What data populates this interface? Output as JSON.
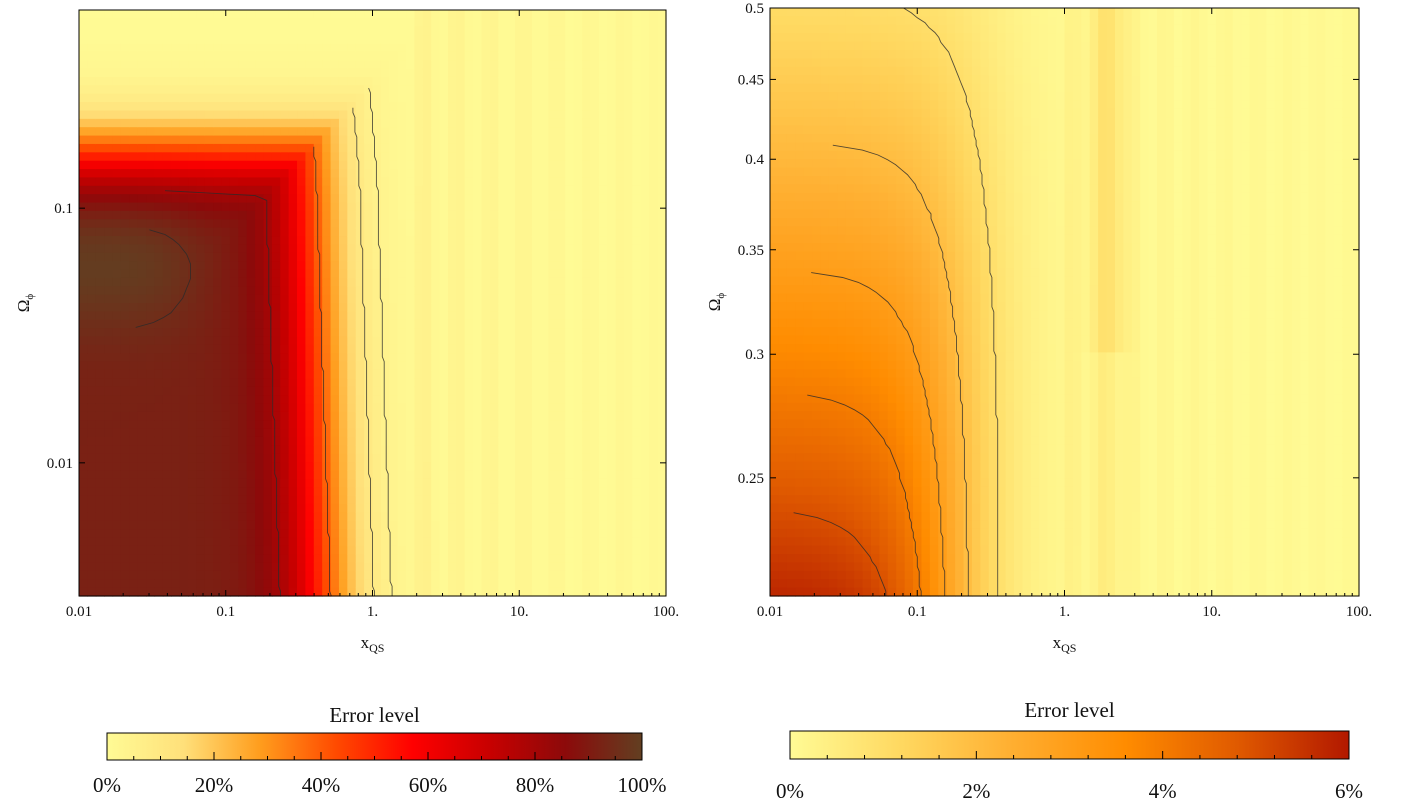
{
  "chart_data": [
    {
      "type": "heatmap",
      "xlabel": "x",
      "xlabel_sub": "QS",
      "ylabel": "Ω",
      "ylabel_sub": "ϕ",
      "x_scale": "log",
      "y_scale": "log",
      "xlim": [
        0.01,
        100
      ],
      "ylim": [
        0.003,
        0.6
      ],
      "x_ticks": [
        {
          "value": 0.01,
          "label": "0.01"
        },
        {
          "value": 0.1,
          "label": "0.1"
        },
        {
          "value": 1,
          "label": "1."
        },
        {
          "value": 10,
          "label": "10."
        },
        {
          "value": 100,
          "label": "100."
        }
      ],
      "y_ticks": [
        {
          "value": 0.1,
          "label": "0.1"
        },
        {
          "value": 0.01,
          "label": "0.01"
        }
      ],
      "colorbar": {
        "title": "Error level",
        "min": 0,
        "max": 100,
        "ticks": [
          "0%",
          "20%",
          "40%",
          "60%",
          "80%",
          "100%"
        ],
        "colors": [
          "#fffb95",
          "#ffe07a",
          "#ff9d1d",
          "#ff4a00",
          "#ff0000",
          "#c80000",
          "#8c0a0a",
          "#623f21"
        ]
      },
      "contour_levels_pct": [
        5,
        10,
        40,
        80,
        95
      ]
    },
    {
      "type": "heatmap",
      "xlabel": "x",
      "xlabel_sub": "QS",
      "ylabel": "Ω",
      "ylabel_sub": "ϕ",
      "x_scale": "log",
      "y_scale": "log",
      "xlim": [
        0.01,
        100
      ],
      "ylim": [
        0.21,
        0.5
      ],
      "x_ticks": [
        {
          "value": 0.01,
          "label": "0.01"
        },
        {
          "value": 0.1,
          "label": "0.1"
        },
        {
          "value": 1,
          "label": "1."
        },
        {
          "value": 10,
          "label": "10."
        },
        {
          "value": 100,
          "label": "100."
        }
      ],
      "y_ticks": [
        {
          "value": 0.5,
          "label": "0.5"
        },
        {
          "value": 0.45,
          "label": "0.45"
        },
        {
          "value": 0.4,
          "label": "0.4"
        },
        {
          "value": 0.35,
          "label": "0.35"
        },
        {
          "value": 0.3,
          "label": "0.3"
        },
        {
          "value": 0.25,
          "label": "0.25"
        }
      ],
      "colorbar": {
        "title": "Error level",
        "min": 0,
        "max": 6,
        "ticks": [
          "0%",
          "2%",
          "4%",
          "6%"
        ],
        "colors": [
          "#fffb95",
          "#ffd860",
          "#ffae30",
          "#ff8c00",
          "#e05a00",
          "#b21800"
        ]
      },
      "contour_levels_pct": [
        1,
        2,
        3,
        4,
        5
      ]
    }
  ]
}
